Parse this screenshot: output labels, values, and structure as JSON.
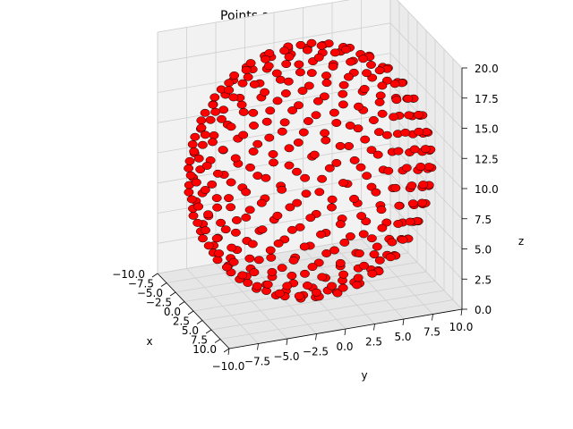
{
  "chart_data": {
    "type": "scatter",
    "projection": "3d",
    "title": "Points around sphere",
    "xlabel": "x",
    "ylabel": "y",
    "zlabel": "z",
    "xlim": [
      -10,
      10
    ],
    "ylim": [
      -10,
      10
    ],
    "zlim": [
      0,
      20
    ],
    "x_ticks": [
      "−10.0",
      "−7.5",
      "−5.0",
      "−2.5",
      "0.0",
      "2.5",
      "5.0",
      "7.5",
      "10.0"
    ],
    "y_ticks": [
      "−10.0",
      "−7.5",
      "−5.0",
      "−2.5",
      "0.0",
      "2.5",
      "5.0",
      "7.5",
      "10.0"
    ],
    "z_ticks": [
      "0.0",
      "2.5",
      "5.0",
      "7.5",
      "10.0",
      "12.5",
      "15.0",
      "17.5",
      "20.0"
    ],
    "grid": true,
    "series": [
      {
        "marker_color": "#ff0000",
        "edge_color": "#000000",
        "shape": "sphere",
        "center": [
          0,
          0,
          10
        ],
        "radius": 10,
        "point_count": 400
      }
    ]
  }
}
